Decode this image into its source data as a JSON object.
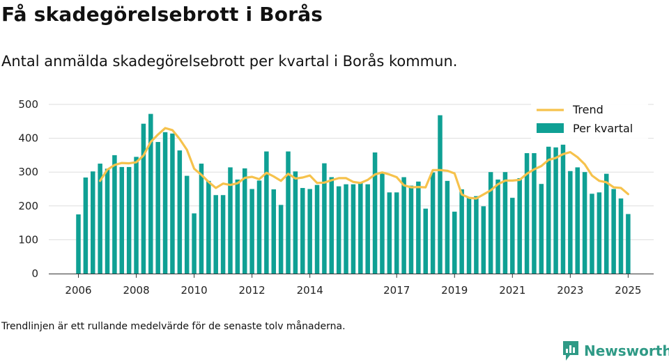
{
  "title": "Få skadegörelsebrott i Borås",
  "subtitle": "Antal anmälda skadegörelsebrott per kvartal i Borås kommun.",
  "footnote": "Trendlinjen är ett rullande medelvärde för de senaste tolv månaderna.",
  "brand": {
    "name": "Newsworthy",
    "icon": "newsworthy-logo-icon"
  },
  "colors": {
    "bars": "#0fa094",
    "trend": "#f6c24c",
    "grid": "#dddddd",
    "brand": "#2f9a86"
  },
  "chart_data": {
    "type": "bar",
    "title": "Få skadegörelsebrott i Borås",
    "xlabel": "",
    "ylabel": "",
    "ylim": [
      0,
      500
    ],
    "yticks": [
      "0",
      "100",
      "200",
      "300",
      "400",
      "500"
    ],
    "xticks": [
      "2006",
      "2008",
      "2010",
      "2012",
      "2014",
      "2017",
      "2019",
      "2021",
      "2023",
      "2025"
    ],
    "legend_position": "top-right",
    "grid": true,
    "x": [
      "2006 Q1",
      "2006 Q2",
      "2006 Q3",
      "2006 Q4",
      "2007 Q1",
      "2007 Q2",
      "2007 Q3",
      "2007 Q4",
      "2008 Q1",
      "2008 Q2",
      "2008 Q3",
      "2008 Q4",
      "2009 Q1",
      "2009 Q2",
      "2009 Q3",
      "2009 Q4",
      "2010 Q1",
      "2010 Q2",
      "2010 Q3",
      "2010 Q4",
      "2011 Q1",
      "2011 Q2",
      "2011 Q3",
      "2011 Q4",
      "2012 Q1",
      "2012 Q2",
      "2012 Q3",
      "2012 Q4",
      "2013 Q1",
      "2013 Q2",
      "2013 Q3",
      "2013 Q4",
      "2014 Q1",
      "2014 Q2",
      "2014 Q3",
      "2014 Q4",
      "2015 Q1",
      "2015 Q2",
      "2015 Q3",
      "2015 Q4",
      "2016 Q1",
      "2016 Q2",
      "2016 Q3",
      "2016 Q4",
      "2017 Q1",
      "2017 Q2",
      "2017 Q3",
      "2017 Q4",
      "2018 Q1",
      "2018 Q2",
      "2018 Q3",
      "2018 Q4",
      "2019 Q1",
      "2019 Q2",
      "2019 Q3",
      "2019 Q4",
      "2020 Q1",
      "2020 Q2",
      "2020 Q3",
      "2020 Q4",
      "2021 Q1",
      "2021 Q2",
      "2021 Q3",
      "2021 Q4",
      "2022 Q1",
      "2022 Q2",
      "2022 Q3",
      "2022 Q4",
      "2023 Q1",
      "2023 Q2",
      "2023 Q3",
      "2023 Q4",
      "2024 Q1",
      "2024 Q2",
      "2024 Q3",
      "2024 Q4",
      "2025 Q1"
    ],
    "series": [
      {
        "name": "Per kvartal",
        "values": [
          175,
          284,
          302,
          325,
          310,
          350,
          315,
          315,
          345,
          443,
          472,
          389,
          418,
          414,
          364,
          289,
          178,
          325,
          274,
          232,
          232,
          314,
          278,
          311,
          250,
          275,
          361,
          249,
          203,
          361,
          302,
          253,
          250,
          262,
          326,
          285,
          258,
          264,
          264,
          270,
          264,
          358,
          300,
          240,
          240,
          285,
          260,
          272,
          192,
          299,
          468,
          274,
          183,
          249,
          224,
          229,
          199,
          300,
          278,
          300,
          224,
          282,
          356,
          356,
          265,
          375,
          373,
          381,
          303,
          314,
          300,
          236,
          240,
          295,
          250,
          222,
          176
        ]
      },
      {
        "name": "Trend",
        "type": "line",
        "values": [
          null,
          null,
          null,
          274,
          307,
          321,
          327,
          326,
          329,
          349,
          389,
          411,
          430,
          424,
          398,
          366,
          310,
          292,
          271,
          253,
          266,
          262,
          267,
          283,
          286,
          279,
          298,
          287,
          274,
          295,
          281,
          284,
          290,
          268,
          269,
          276,
          282,
          282,
          271,
          268,
          277,
          293,
          299,
          293,
          285,
          261,
          255,
          256,
          255,
          306,
          306,
          304,
          296,
          234,
          224,
          222,
          234,
          246,
          264,
          275,
          275,
          277,
          295,
          308,
          318,
          336,
          342,
          353,
          359,
          344,
          323,
          290,
          274,
          270,
          255,
          253,
          235
        ]
      }
    ]
  }
}
